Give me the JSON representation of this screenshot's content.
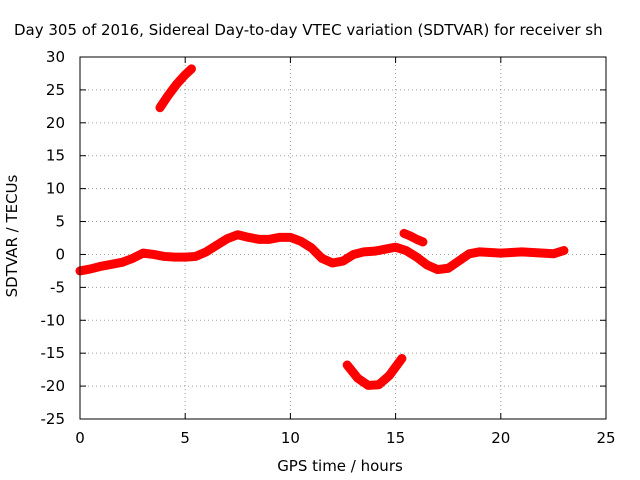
{
  "chart_data": {
    "type": "scatter",
    "title": "Day 305 of 2016, Sidereal Day-to-day VTEC variation (SDTVAR) for receiver sh",
    "xlabel": "GPS time / hours",
    "ylabel": "SDTVAR / TECUs",
    "xlim": [
      0,
      25
    ],
    "ylim": [
      -25,
      30
    ],
    "xticks": [
      0,
      5,
      10,
      15,
      20,
      25
    ],
    "yticks": [
      -25,
      -20,
      -15,
      -10,
      -5,
      0,
      5,
      10,
      15,
      20,
      25,
      30
    ],
    "grid": true,
    "marker": "+",
    "series": [
      {
        "color": "#ff0000",
        "segments": [
          {
            "x": [
              0.0,
              0.5,
              1.0,
              1.5,
              2.0,
              2.5,
              3.0,
              3.5,
              4.0,
              4.5,
              5.0,
              5.5,
              6.0,
              6.5,
              7.0,
              7.5,
              8.0,
              8.5,
              9.0,
              9.5,
              10.0,
              10.5,
              11.0,
              11.5,
              12.0,
              12.5,
              13.0,
              13.5,
              14.0,
              14.5,
              15.0,
              15.5,
              16.0,
              16.5,
              17.0,
              17.5,
              18.0,
              18.5,
              19.0,
              19.5,
              20.0,
              20.5,
              21.0,
              21.5,
              22.0,
              22.5,
              23.0
            ],
            "y": [
              -2.5,
              -2.2,
              -1.8,
              -1.5,
              -1.2,
              -0.6,
              0.2,
              0.0,
              -0.3,
              -0.4,
              -0.4,
              -0.3,
              0.4,
              1.4,
              2.4,
              3.0,
              2.6,
              2.3,
              2.3,
              2.6,
              2.6,
              2.0,
              1.0,
              -0.6,
              -1.3,
              -1.0,
              0.0,
              0.4,
              0.5,
              0.8,
              1.1,
              0.6,
              -0.4,
              -1.6,
              -2.3,
              -2.1,
              -1.0,
              0.1,
              0.4,
              0.3,
              0.2,
              0.3,
              0.4,
              0.3,
              0.2,
              0.1,
              0.6
            ]
          },
          {
            "x": [
              3.8,
              4.2,
              4.6,
              5.0,
              5.3
            ],
            "y": [
              22.3,
              24.2,
              25.9,
              27.3,
              28.2
            ]
          },
          {
            "x": [
              12.7,
              13.2,
              13.7,
              14.2,
              14.7,
              15.3
            ],
            "y": [
              -16.8,
              -18.8,
              -19.9,
              -19.8,
              -18.4,
              -15.8
            ]
          },
          {
            "x": [
              15.4,
              15.7,
              16.0,
              16.3
            ],
            "y": [
              3.2,
              2.8,
              2.3,
              1.9
            ]
          }
        ]
      }
    ]
  }
}
